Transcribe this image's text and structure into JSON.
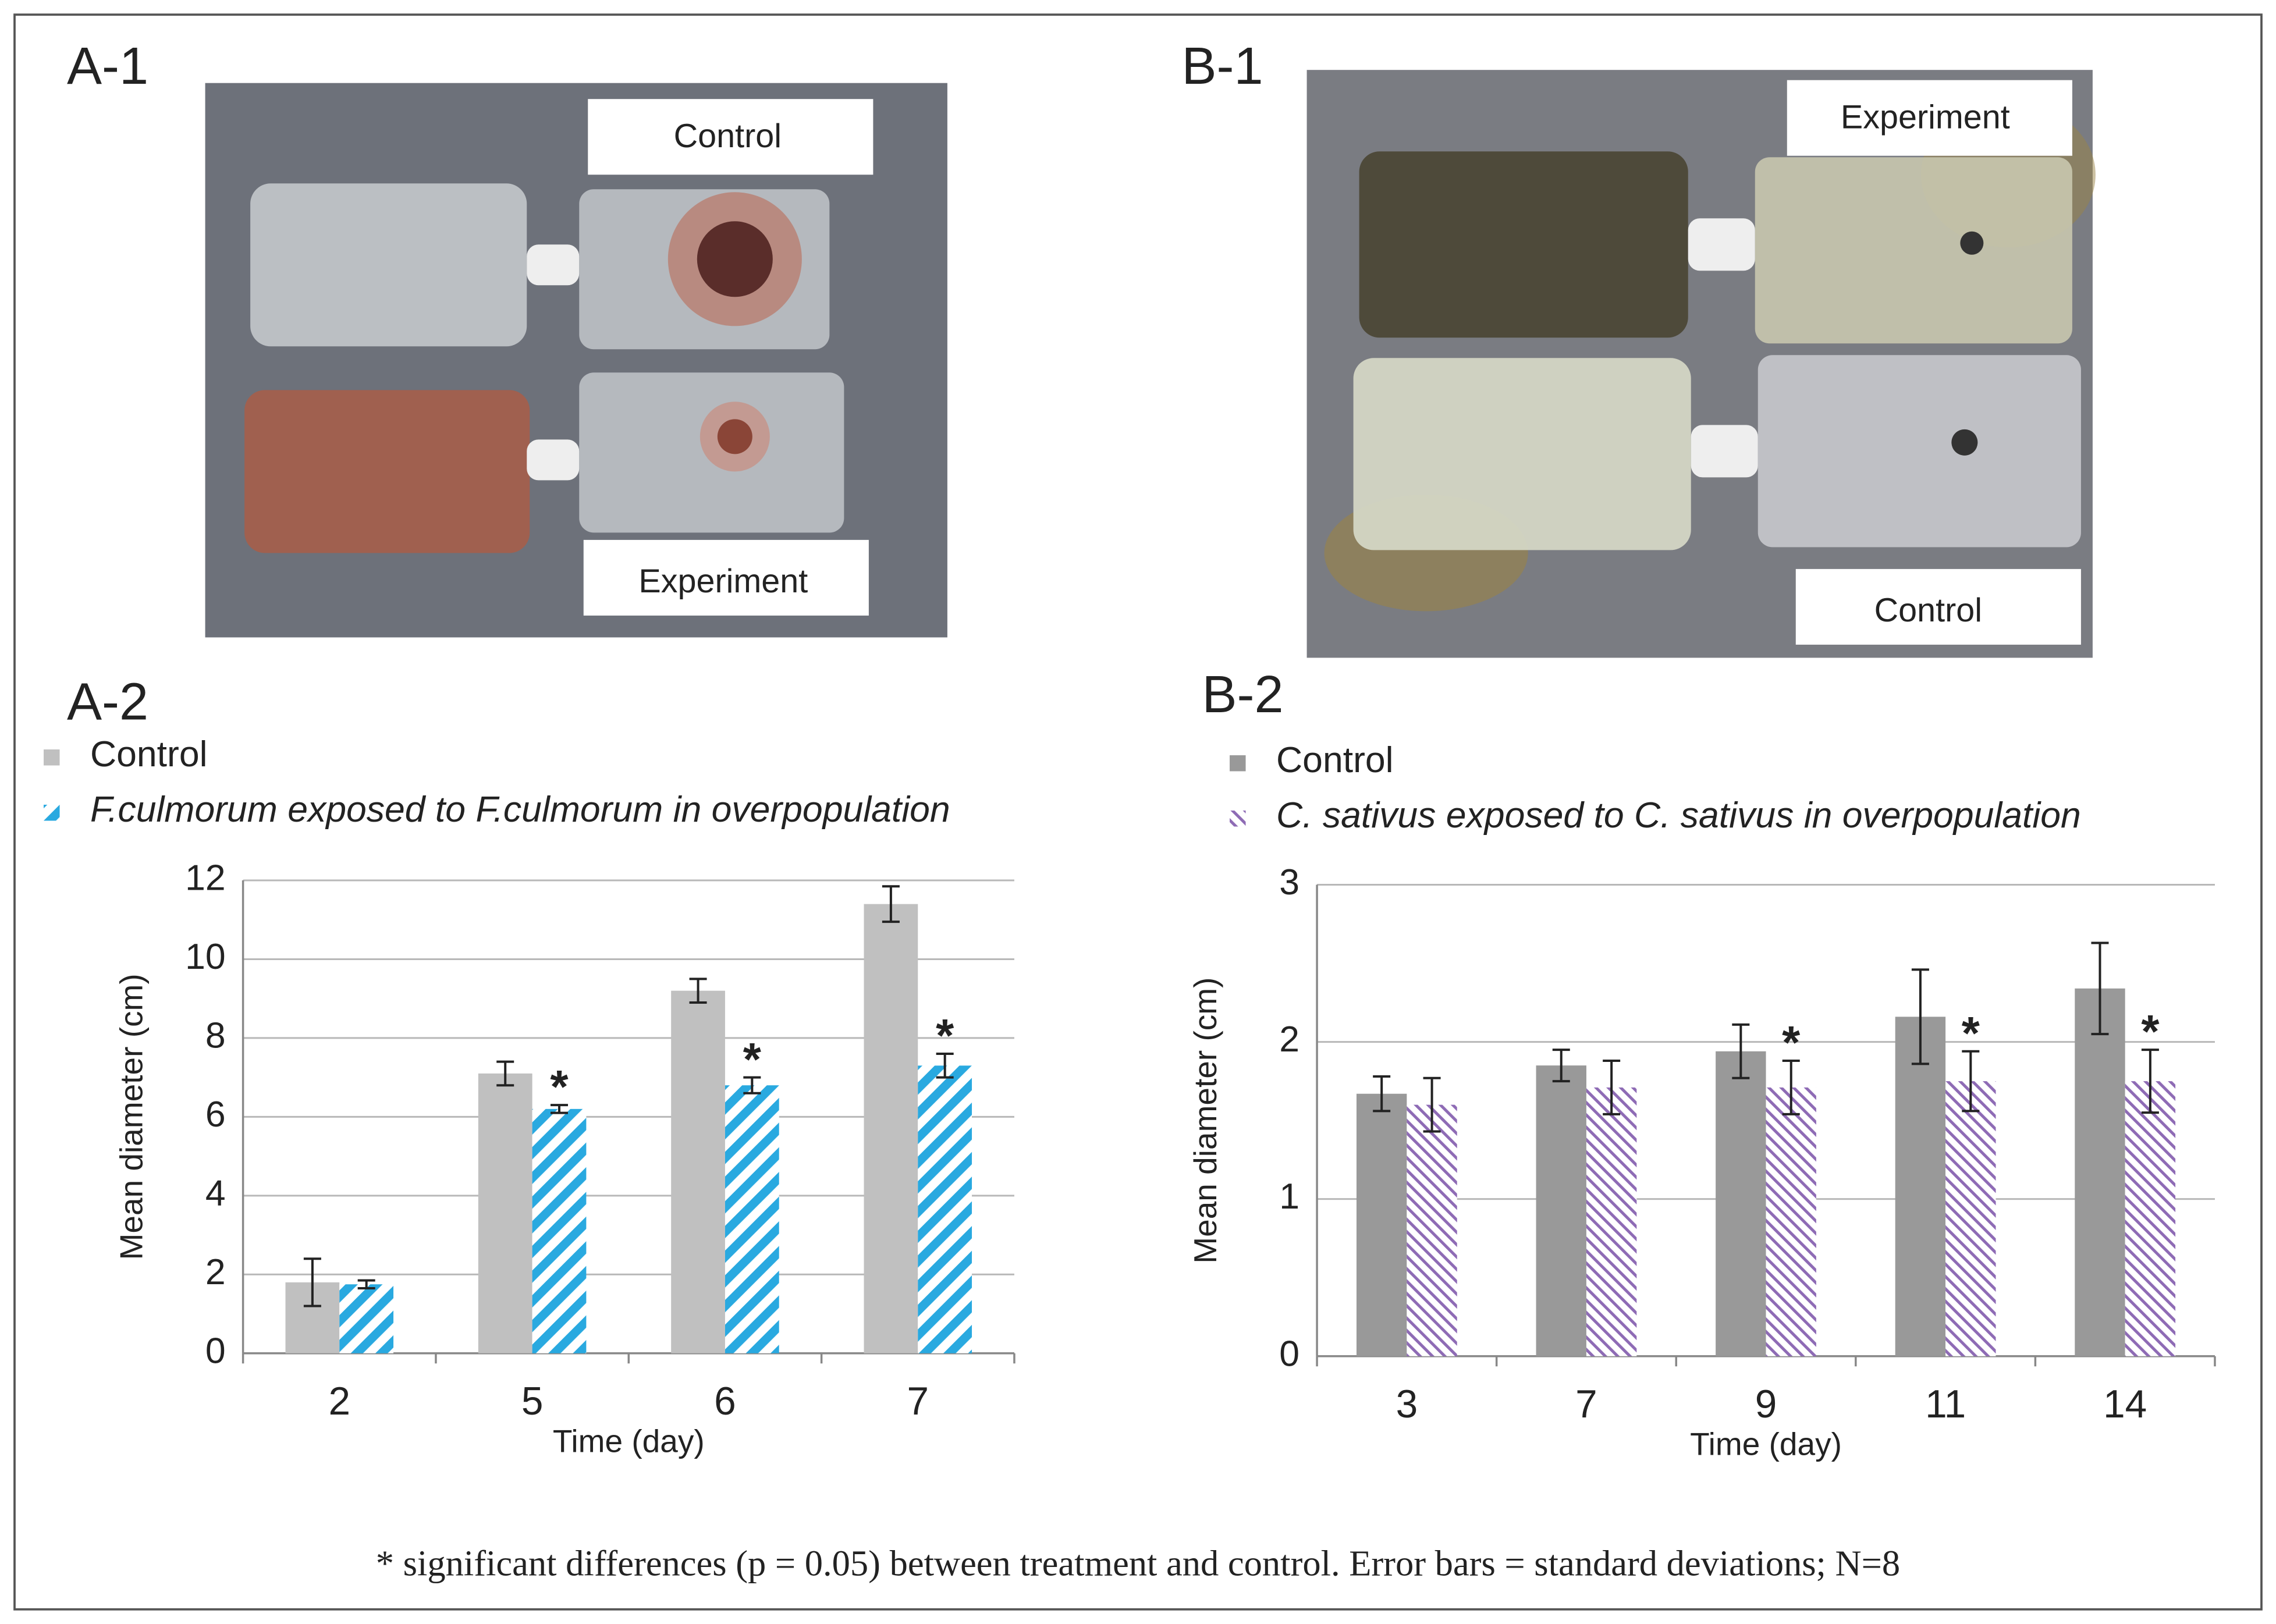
{
  "photos": [
    {
      "label": "A-1",
      "captions": [
        "Control",
        "Experiment"
      ]
    },
    {
      "label": "B-1",
      "captions": [
        "Experiment",
        "Control"
      ]
    }
  ],
  "footnote": "* significant differences (p = 0.05) between treatment and control. Error bars = standard deviations; N=8",
  "chart_data": [
    {
      "type": "bar",
      "panel": "A-2",
      "x_label": "Time (day)",
      "y_label": "Mean diameter (cm)",
      "categories": [
        "2",
        "5",
        "6",
        "7"
      ],
      "ylim": [
        0,
        12
      ],
      "yticks": [
        0,
        2,
        4,
        6,
        8,
        10,
        12
      ],
      "grid": true,
      "series": [
        {
          "name": "Control",
          "color": "#c0c0c0",
          "hatch": false,
          "values": [
            1.8,
            7.1,
            9.2,
            11.4
          ],
          "errors": [
            0.6,
            0.3,
            0.3,
            0.45
          ],
          "markers": [
            null,
            null,
            null,
            null
          ]
        },
        {
          "name": "F.culmorum exposed to F.culmorum in overpopulation",
          "color": "#29a9e0",
          "hatch": true,
          "values": [
            1.75,
            6.2,
            6.8,
            7.3
          ],
          "errors": [
            0.1,
            0.1,
            0.2,
            0.3
          ],
          "markers": [
            null,
            "*",
            "*",
            "*"
          ]
        }
      ]
    },
    {
      "type": "bar",
      "panel": "B-2",
      "x_label": "Time (day)",
      "y_label": "Mean diameter (cm)",
      "categories": [
        "3",
        "7",
        "9",
        "11",
        "14"
      ],
      "ylim": [
        0,
        3
      ],
      "yticks": [
        0,
        1,
        2,
        3
      ],
      "grid": true,
      "series": [
        {
          "name": "Control",
          "color": "#999999",
          "hatch": false,
          "values": [
            1.67,
            1.85,
            1.94,
            2.16,
            2.34
          ],
          "errors": [
            0.11,
            0.1,
            0.17,
            0.3,
            0.29
          ],
          "markers": [
            null,
            null,
            null,
            null,
            null
          ]
        },
        {
          "name": "C. sativus exposed to C. sativus in overpopulation",
          "color": "#8e6bb5",
          "hatch": true,
          "values": [
            1.6,
            1.71,
            1.71,
            1.75,
            1.75
          ],
          "errors": [
            0.17,
            0.17,
            0.17,
            0.19,
            0.2
          ],
          "markers": [
            null,
            null,
            "*",
            "*",
            "*"
          ]
        }
      ]
    }
  ]
}
